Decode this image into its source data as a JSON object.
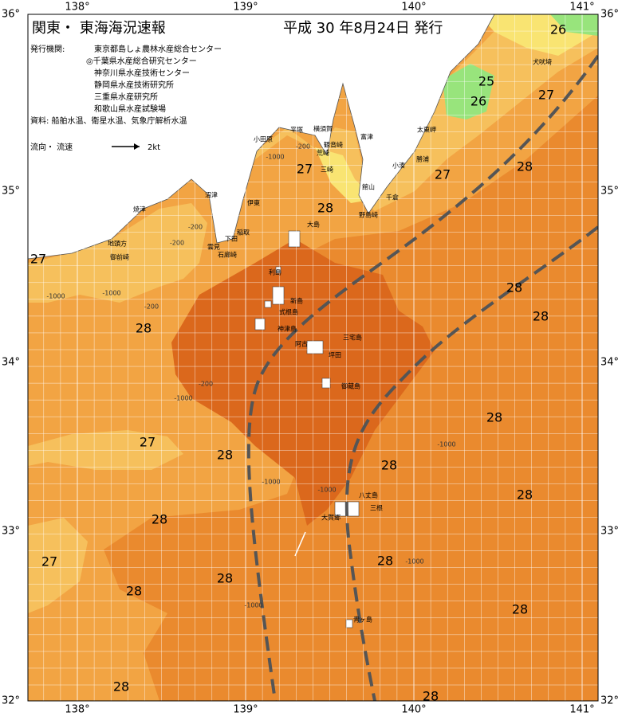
{
  "header": {
    "title": "関東・ 東海海況速報",
    "date": "平成 30 年8月24日 発行"
  },
  "publishers": {
    "label": "発行機関:",
    "items": [
      "東京都島しょ農林水産総合センター",
      "◎千葉県水産総合研究センター",
      "神奈川県水産技術センター",
      "静岡県水産技術研究所",
      "三重県水産研究所",
      "和歌山県水産試験場"
    ]
  },
  "sources": "資料: 船舶水温、衛星水温、気象庁解析水温",
  "legend": {
    "label": "流向・ 流速",
    "scale": "2kt"
  },
  "longitude_labels": [
    "138°",
    "139°",
    "140°",
    "141°"
  ],
  "latitude_labels": [
    "36°",
    "35°",
    "34°",
    "33°",
    "32°"
  ],
  "temperature_labels": [
    "26",
    "25",
    "26",
    "27",
    "27",
    "27",
    "28",
    "28",
    "27",
    "28",
    "28",
    "28",
    "28",
    "27",
    "28",
    "28",
    "28",
    "28",
    "27",
    "28",
    "28",
    "28",
    "28",
    "28",
    "28"
  ],
  "depth_labels": [
    "-1000",
    "-200",
    "-200",
    "-1000",
    "-200",
    "-200",
    "-1000",
    "-200",
    "-1000",
    "-1000",
    "-1000",
    "-1000",
    "-1000",
    "-1000"
  ],
  "places": [
    "犬吠埼",
    "太東岬",
    "勝浦",
    "小湊",
    "富津",
    "横須賀",
    "観音崎",
    "平塚",
    "小田原",
    "荒崎",
    "三崎",
    "館山",
    "千倉",
    "野島崎",
    "伊東",
    "沼津",
    "焼津",
    "地頭方",
    "御前崎",
    "稲取",
    "下田",
    "雲見",
    "石廊崎",
    "大島",
    "利島",
    "新島",
    "式根島",
    "神津島",
    "三宅島",
    "阿古",
    "坪田",
    "御蔵島",
    "八丈島",
    "三根",
    "大賀郷",
    "青ヶ島"
  ]
}
